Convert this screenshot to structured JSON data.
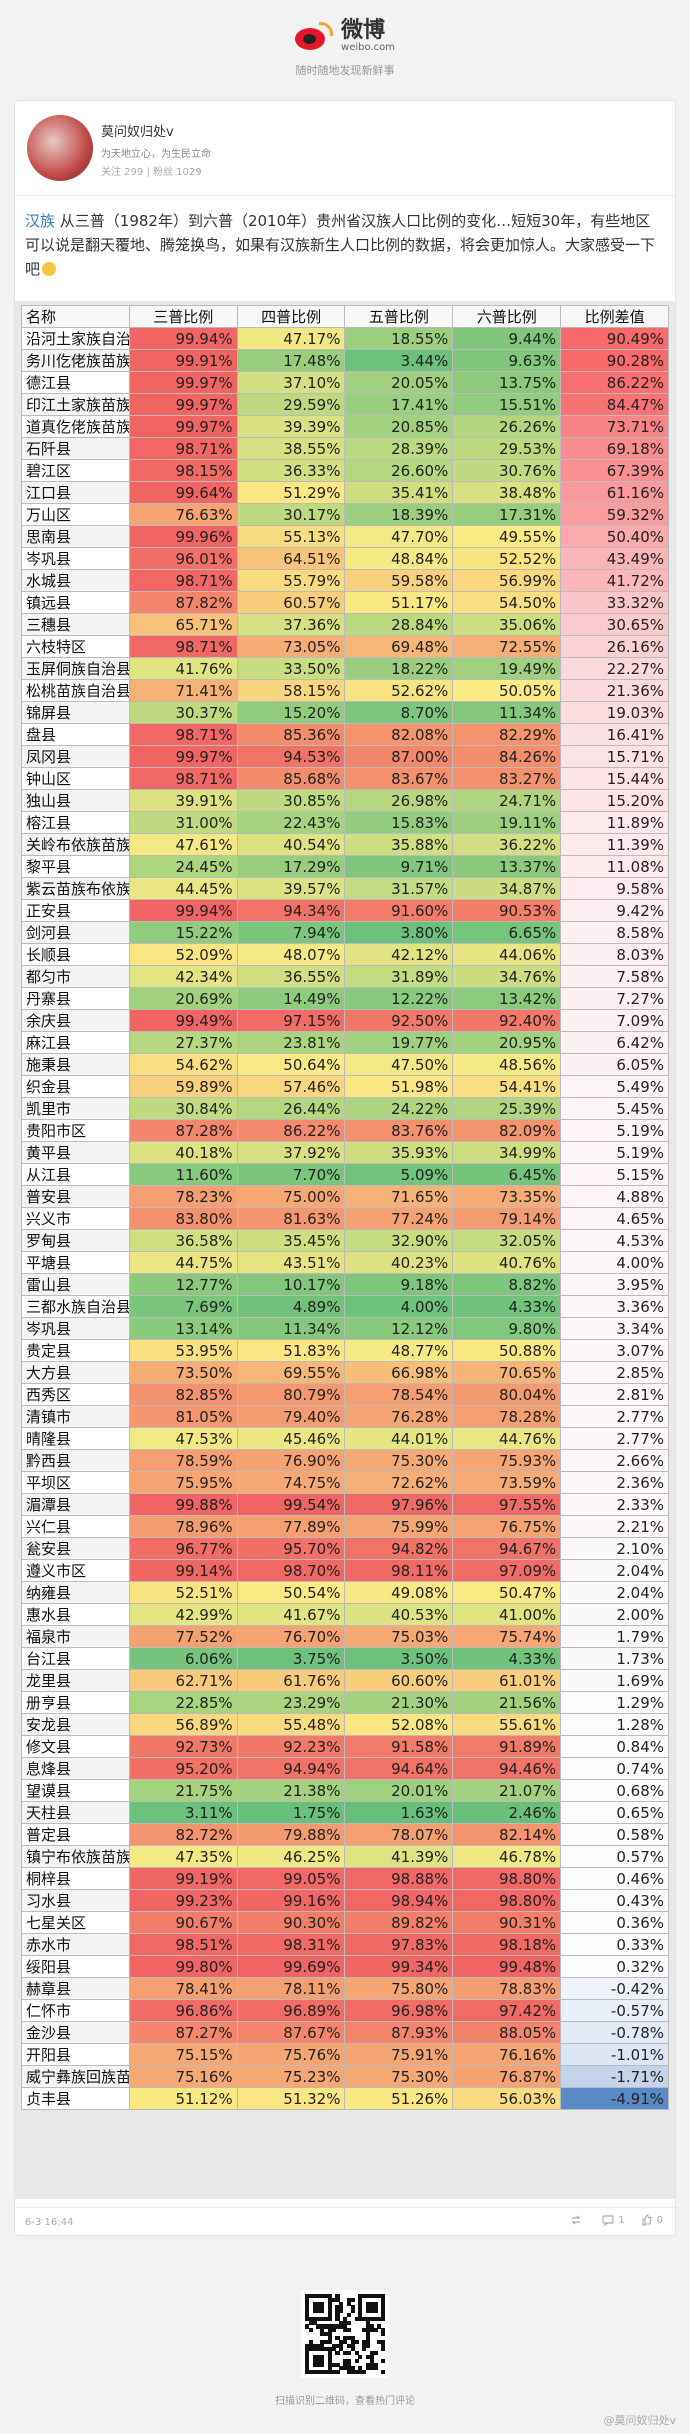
{
  "header": {
    "logo_name": "微博",
    "logo_domain": "weibo.com",
    "slogan": "随时随地发现新鲜事"
  },
  "profile": {
    "name": "莫问奴归处v",
    "bio": "为天地立心，为生民立命",
    "stats": "关注 299  |  粉丝 1029"
  },
  "post": {
    "tag": "汉族",
    "text": " 从三普（1982年）到六普（2010年）贵州省汉族人口比例的变化…短短30年，有些地区可以说是翻天覆地、腾笼换鸟，如果有汉族新生人口比例的数据，将会更加惊人。大家感受一下吧"
  },
  "table": {
    "headers": [
      "名称",
      "三普比例",
      "四普比例",
      "五普比例",
      "六普比例",
      "比例差值"
    ],
    "rows": [
      [
        "沿河土家族自治县",
        99.94,
        47.17,
        18.55,
        9.44,
        90.49
      ],
      [
        "务川仡佬族苗族自治县",
        99.91,
        17.48,
        3.44,
        9.63,
        90.28
      ],
      [
        "德江县",
        99.97,
        37.1,
        20.05,
        13.75,
        86.22
      ],
      [
        "印江土家族苗族自治县",
        99.97,
        29.59,
        17.41,
        15.51,
        84.47
      ],
      [
        "道真仡佬族苗族自治县",
        99.97,
        39.39,
        20.85,
        26.26,
        73.71
      ],
      [
        "石阡县",
        98.71,
        38.55,
        28.39,
        29.53,
        69.18
      ],
      [
        "碧江区",
        98.15,
        36.33,
        26.6,
        30.76,
        67.39
      ],
      [
        "江口县",
        99.64,
        51.29,
        35.41,
        38.48,
        61.16
      ],
      [
        "万山区",
        76.63,
        30.17,
        18.39,
        17.31,
        59.32
      ],
      [
        "思南县",
        99.96,
        55.13,
        47.7,
        49.55,
        50.4
      ],
      [
        "岑巩县",
        96.01,
        64.51,
        48.84,
        52.52,
        43.49
      ],
      [
        "水城县",
        98.71,
        55.79,
        59.58,
        56.99,
        41.72
      ],
      [
        "镇远县",
        87.82,
        60.57,
        51.17,
        54.5,
        33.32
      ],
      [
        "三穗县",
        65.71,
        37.36,
        28.84,
        35.06,
        30.65
      ],
      [
        "六枝特区",
        98.71,
        73.05,
        69.48,
        72.55,
        26.16
      ],
      [
        "玉屏侗族自治县",
        41.76,
        33.5,
        18.22,
        19.49,
        22.27
      ],
      [
        "松桃苗族自治县",
        71.41,
        58.15,
        52.62,
        50.05,
        21.36
      ],
      [
        "锦屏县",
        30.37,
        15.2,
        8.7,
        11.34,
        19.03
      ],
      [
        "盘县",
        98.71,
        85.36,
        82.08,
        82.29,
        16.41
      ],
      [
        "凤冈县",
        99.97,
        94.53,
        87.0,
        84.26,
        15.71
      ],
      [
        "钟山区",
        98.71,
        85.68,
        83.67,
        83.27,
        15.44
      ],
      [
        "独山县",
        39.91,
        30.85,
        26.98,
        24.71,
        15.2
      ],
      [
        "榕江县",
        31.0,
        22.43,
        15.83,
        19.11,
        11.89
      ],
      [
        "关岭布依族苗族自治县",
        47.61,
        40.54,
        35.88,
        36.22,
        11.39
      ],
      [
        "黎平县",
        24.45,
        17.29,
        9.71,
        13.37,
        11.08
      ],
      [
        "紫云苗族布依族自治县",
        44.45,
        39.57,
        31.57,
        34.87,
        9.58
      ],
      [
        "正安县",
        99.94,
        94.34,
        91.6,
        90.53,
        9.42
      ],
      [
        "剑河县",
        15.22,
        7.94,
        3.8,
        6.65,
        8.58
      ],
      [
        "长顺县",
        52.09,
        48.07,
        42.12,
        44.06,
        8.03
      ],
      [
        "都匀市",
        42.34,
        36.55,
        31.89,
        34.76,
        7.58
      ],
      [
        "丹寨县",
        20.69,
        14.49,
        12.22,
        13.42,
        7.27
      ],
      [
        "余庆县",
        99.49,
        97.15,
        92.5,
        92.4,
        7.09
      ],
      [
        "麻江县",
        27.37,
        23.81,
        19.77,
        20.95,
        6.42
      ],
      [
        "施秉县",
        54.62,
        50.64,
        47.5,
        48.56,
        6.05
      ],
      [
        "织金县",
        59.89,
        57.46,
        51.98,
        54.41,
        5.49
      ],
      [
        "凯里市",
        30.84,
        26.44,
        24.22,
        25.39,
        5.45
      ],
      [
        "贵阳市区",
        87.28,
        86.22,
        83.76,
        82.09,
        5.19
      ],
      [
        "黄平县",
        40.18,
        37.92,
        35.93,
        34.99,
        5.19
      ],
      [
        "从江县",
        11.6,
        7.7,
        5.09,
        6.45,
        5.15
      ],
      [
        "普安县",
        78.23,
        75.0,
        71.65,
        73.35,
        4.88
      ],
      [
        "兴义市",
        83.8,
        81.63,
        77.24,
        79.14,
        4.65
      ],
      [
        "罗甸县",
        36.58,
        35.45,
        32.9,
        32.05,
        4.53
      ],
      [
        "平塘县",
        44.75,
        43.51,
        40.23,
        40.76,
        4.0
      ],
      [
        "雷山县",
        12.77,
        10.17,
        9.18,
        8.82,
        3.95
      ],
      [
        "三都水族自治县",
        7.69,
        4.89,
        4.0,
        4.33,
        3.36
      ],
      [
        "岑巩县",
        13.14,
        11.34,
        12.12,
        9.8,
        3.34
      ],
      [
        "贵定县",
        53.95,
        51.83,
        48.77,
        50.88,
        3.07
      ],
      [
        "大方县",
        73.5,
        69.55,
        66.98,
        70.65,
        2.85
      ],
      [
        "西秀区",
        82.85,
        80.79,
        78.54,
        80.04,
        2.81
      ],
      [
        "清镇市",
        81.05,
        79.4,
        76.28,
        78.28,
        2.77
      ],
      [
        "晴隆县",
        47.53,
        45.46,
        44.01,
        44.76,
        2.77
      ],
      [
        "黔西县",
        78.59,
        76.9,
        75.3,
        75.93,
        2.66
      ],
      [
        "平坝区",
        75.95,
        74.75,
        72.62,
        73.59,
        2.36
      ],
      [
        "湄潭县",
        99.88,
        99.54,
        97.96,
        97.55,
        2.33
      ],
      [
        "兴仁县",
        78.96,
        77.89,
        75.99,
        76.75,
        2.21
      ],
      [
        "瓮安县",
        96.77,
        95.7,
        94.82,
        94.67,
        2.1
      ],
      [
        "遵义市区",
        99.14,
        98.7,
        98.11,
        97.09,
        2.04
      ],
      [
        "纳雍县",
        52.51,
        50.54,
        49.08,
        50.47,
        2.04
      ],
      [
        "惠水县",
        42.99,
        41.67,
        40.53,
        41.0,
        2.0
      ],
      [
        "福泉市",
        77.52,
        76.7,
        75.03,
        75.74,
        1.79
      ],
      [
        "台江县",
        6.06,
        3.75,
        3.5,
        4.33,
        1.73
      ],
      [
        "龙里县",
        62.71,
        61.76,
        60.6,
        61.01,
        1.69
      ],
      [
        "册亨县",
        22.85,
        23.29,
        21.3,
        21.56,
        1.29
      ],
      [
        "安龙县",
        56.89,
        55.48,
        52.08,
        55.61,
        1.28
      ],
      [
        "修文县",
        92.73,
        92.23,
        91.58,
        91.89,
        0.84
      ],
      [
        "息烽县",
        95.2,
        94.94,
        94.64,
        94.46,
        0.74
      ],
      [
        "望谟县",
        21.75,
        21.38,
        20.01,
        21.07,
        0.68
      ],
      [
        "天柱县",
        3.11,
        1.75,
        1.63,
        2.46,
        0.65
      ],
      [
        "普定县",
        82.72,
        79.88,
        78.07,
        82.14,
        0.58
      ],
      [
        "镇宁布依族苗族自治县",
        47.35,
        46.25,
        41.39,
        46.78,
        0.57
      ],
      [
        "桐梓县",
        99.19,
        99.05,
        98.88,
        98.8,
        0.46
      ],
      [
        "习水县",
        99.23,
        99.16,
        98.94,
        98.8,
        0.43
      ],
      [
        "七星关区",
        90.67,
        90.3,
        89.82,
        90.31,
        0.36
      ],
      [
        "赤水市",
        98.51,
        98.31,
        97.83,
        98.18,
        0.33
      ],
      [
        "绥阳县",
        99.8,
        99.69,
        99.34,
        99.48,
        0.32
      ],
      [
        "赫章县",
        78.41,
        78.11,
        75.8,
        78.83,
        -0.42
      ],
      [
        "仁怀市",
        96.86,
        96.89,
        96.98,
        97.42,
        -0.57
      ],
      [
        "金沙县",
        87.27,
        87.67,
        87.93,
        88.05,
        -0.78
      ],
      [
        "开阳县",
        75.15,
        75.76,
        75.91,
        76.16,
        -1.01
      ],
      [
        "威宁彝族回族苗族自治县",
        75.16,
        75.23,
        75.3,
        76.87,
        -1.71
      ],
      [
        "贞丰县",
        51.12,
        51.32,
        51.26,
        56.03,
        -4.91
      ]
    ]
  },
  "footer": {
    "time": "6-3 16:44",
    "repost": "",
    "comment": "1",
    "like": "0"
  },
  "qr_note": "扫描识别二维码，查看热门评论",
  "watermark": "@莫问奴归处v"
}
